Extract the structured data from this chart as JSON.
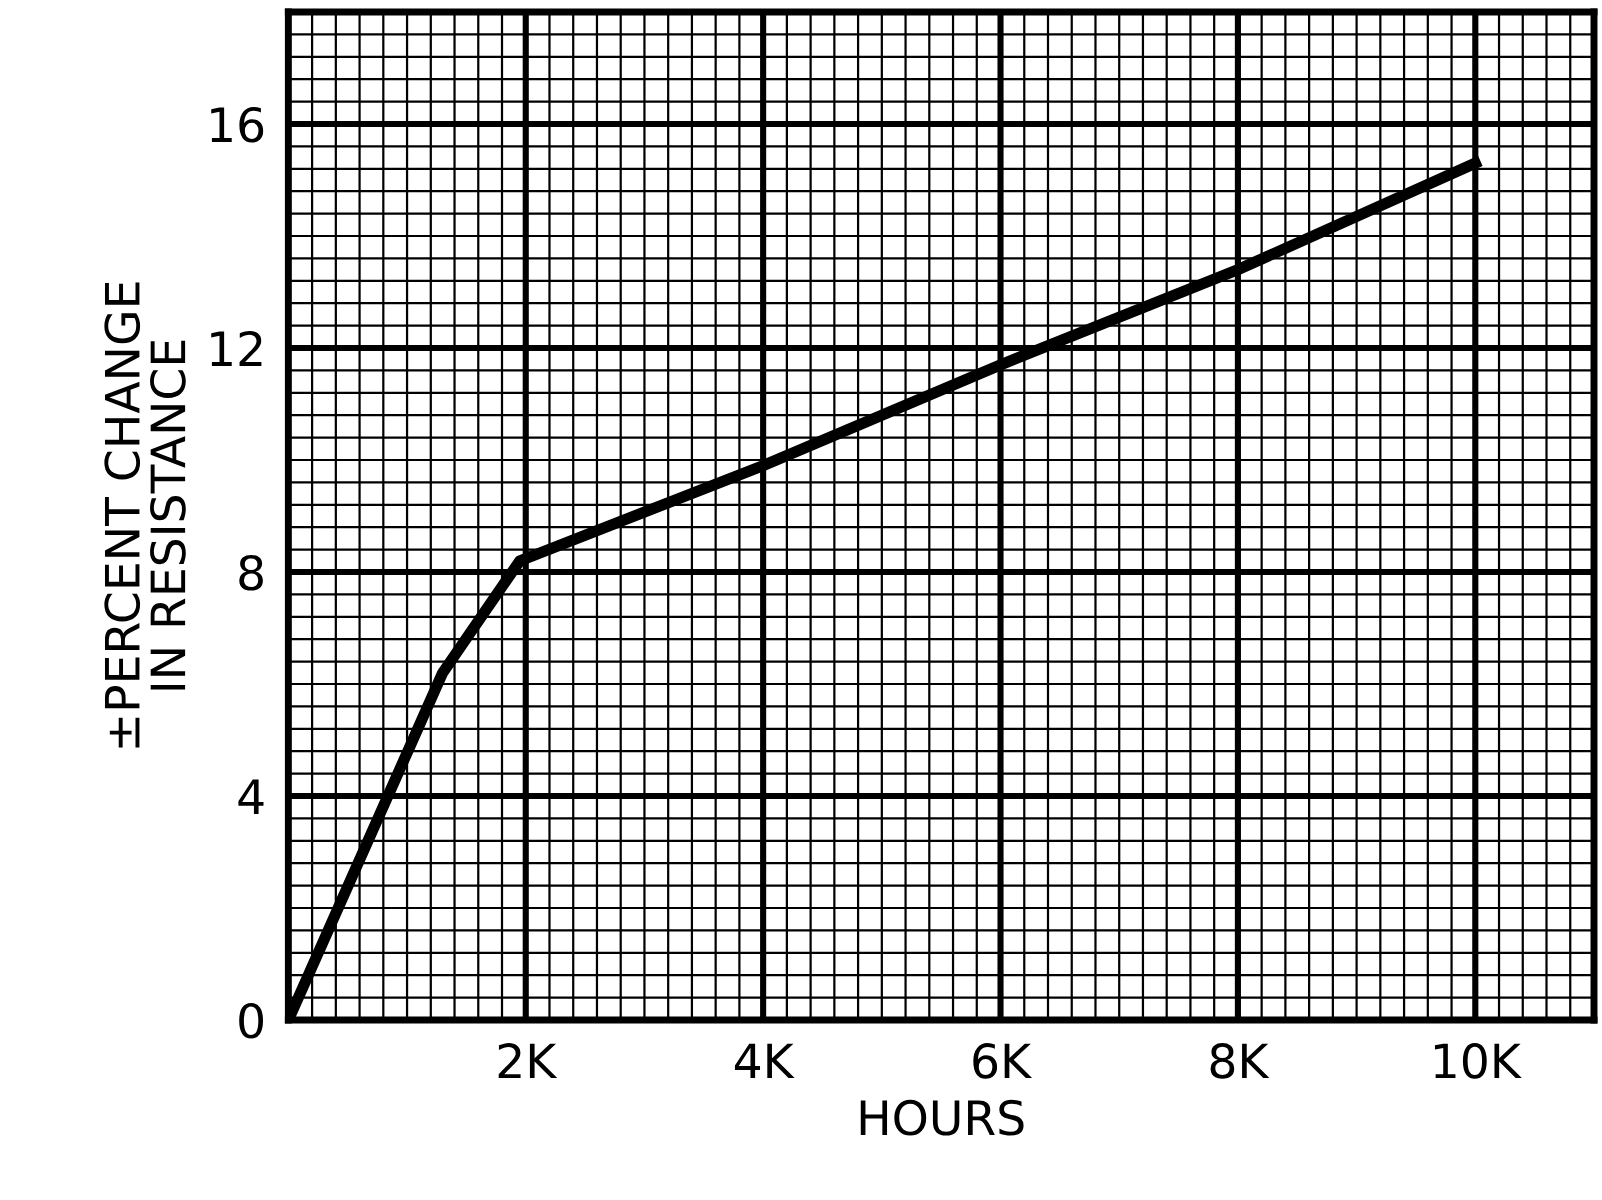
{
  "chart_data": {
    "type": "line",
    "xlabel": "HOURS",
    "ylabel": "±PERCENT CHANGE\nIN RESISTANCE",
    "x": [
      0,
      1300,
      1950,
      4000,
      6000,
      8000,
      10000
    ],
    "series": [
      {
        "color": "#000000",
        "values": [
          0,
          6.2,
          8.2,
          9.9,
          11.7,
          13.4,
          15.3
        ]
      }
    ],
    "xlim": [
      0,
      11000
    ],
    "ylim": [
      0,
      18
    ],
    "xticks": [
      {
        "value": 2000,
        "label": "2K"
      },
      {
        "value": 4000,
        "label": "4K"
      },
      {
        "value": 6000,
        "label": "6K"
      },
      {
        "value": 8000,
        "label": "8K"
      },
      {
        "value": 10000,
        "label": "10K"
      }
    ],
    "yticks": [
      0,
      4,
      8,
      12,
      16
    ],
    "grid": true,
    "marker": "none",
    "line_style": "solid"
  }
}
